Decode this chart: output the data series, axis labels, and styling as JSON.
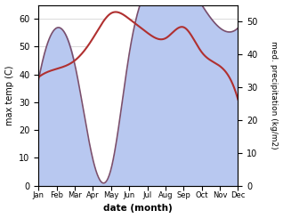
{
  "months": [
    "Jan",
    "Feb",
    "Mar",
    "Apr",
    "May",
    "Jun",
    "Jul",
    "Aug",
    "Sep",
    "Oct",
    "Nov",
    "Dec"
  ],
  "temp_max": [
    39,
    42,
    45,
    53,
    62,
    60,
    55,
    53,
    57,
    48,
    43,
    31
  ],
  "precipitation": [
    32,
    48,
    37,
    8,
    5,
    40,
    60,
    62,
    62,
    55,
    48,
    48
  ],
  "temp_ylim": [
    0,
    65
  ],
  "precip_ylim": [
    0,
    55
  ],
  "temp_color": "#b03030",
  "precip_fill_color": "#b8c8f0",
  "precip_line_color": "#7a4f6d",
  "bg_color": "#ffffff",
  "xlabel": "date (month)",
  "ylabel_left": "max temp (C)",
  "ylabel_right": "med. precipitation (kg/m2)",
  "temp_yticks": [
    0,
    10,
    20,
    30,
    40,
    50,
    60
  ],
  "precip_yticks": [
    0,
    10,
    20,
    30,
    40,
    50
  ],
  "title": ""
}
